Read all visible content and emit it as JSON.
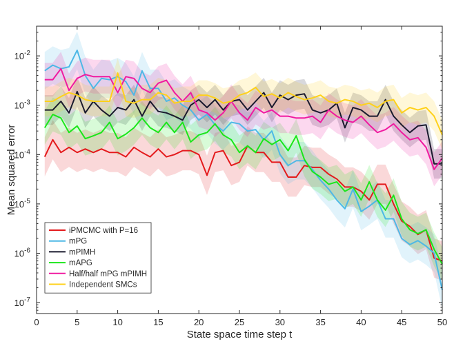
{
  "chart_data": {
    "type": "line",
    "xlabel": "State space time step t",
    "ylabel": "Mean squared error",
    "xlim": [
      0,
      50
    ],
    "ylim": [
      6e-08,
      0.04
    ],
    "yscale": "log",
    "x_ticks": [
      0,
      5,
      10,
      15,
      20,
      25,
      30,
      35,
      40,
      45,
      50
    ],
    "y_ticks": [
      {
        "value": 1e-07,
        "base": "10",
        "exp": "-7"
      },
      {
        "value": 1e-06,
        "base": "10",
        "exp": "-6"
      },
      {
        "value": 1e-05,
        "base": "10",
        "exp": "-5"
      },
      {
        "value": 0.0001,
        "base": "10",
        "exp": "-4"
      },
      {
        "value": 0.001,
        "base": "10",
        "exp": "-3"
      },
      {
        "value": 0.01,
        "base": "10",
        "exp": "-2"
      }
    ],
    "legend_position": "bottom-left",
    "x": [
      1,
      2,
      3,
      4,
      5,
      6,
      7,
      8,
      9,
      10,
      11,
      12,
      13,
      14,
      15,
      16,
      17,
      18,
      19,
      20,
      21,
      22,
      23,
      24,
      25,
      26,
      27,
      28,
      29,
      30,
      31,
      32,
      33,
      34,
      35,
      36,
      37,
      38,
      39,
      40,
      41,
      42,
      43,
      44,
      45,
      46,
      47,
      48,
      49,
      50
    ],
    "series": [
      {
        "name": "iPMCMC with P=16",
        "color": "#e41a1c",
        "band_factor": 2.5,
        "values": [
          9e-05,
          0.0002,
          0.00011,
          0.00014,
          0.00011,
          0.00013,
          0.00011,
          0.00013,
          0.00011,
          0.00011,
          9e-05,
          0.00014,
          0.00011,
          9e-05,
          0.00013,
          9e-05,
          0.0001,
          0.00012,
          0.00012,
          0.0001,
          3.8e-05,
          0.00011,
          0.00012,
          6e-05,
          7e-05,
          0.00015,
          0.00011,
          0.00011,
          7e-05,
          7e-05,
          3.5e-05,
          3.5e-05,
          6e-05,
          5.5e-05,
          5.5e-05,
          4e-05,
          3.2e-05,
          2.2e-05,
          2.2e-05,
          1.8e-05,
          1.2e-05,
          2.5e-05,
          2.5e-05,
          1e-05,
          4.5e-06,
          3.5e-06,
          2.4e-06,
          3e-06,
          8e-07,
          7e-07
        ]
      },
      {
        "name": "mPG",
        "color": "#4db8e6",
        "band_factor": 2.4,
        "values": [
          0.005,
          0.0065,
          0.0055,
          0.006,
          0.013,
          0.004,
          0.0022,
          0.0035,
          0.0033,
          0.0038,
          0.003,
          0.0016,
          0.005,
          0.0022,
          0.0022,
          0.0012,
          0.0014,
          0.001,
          0.0008,
          0.0005,
          0.00065,
          0.0004,
          0.0003,
          0.00045,
          0.00042,
          0.0003,
          0.00032,
          0.0002,
          0.0003,
          0.0001,
          6e-05,
          7.5e-05,
          7.5e-05,
          5e-05,
          3e-05,
          2e-05,
          1.2e-05,
          8e-06,
          2e-05,
          7e-06,
          9e-06,
          1.2e-05,
          5e-06,
          5e-06,
          2e-06,
          1.5e-06,
          1.8e-06,
          1.4e-06,
          1e-06,
          1.8e-07
        ]
      },
      {
        "name": "mPIMH",
        "color": "#1a1a2e",
        "band_factor": 2.0,
        "values": [
          0.0008,
          0.0008,
          0.0012,
          0.0007,
          0.0019,
          0.0007,
          0.0012,
          0.0008,
          0.0006,
          0.0009,
          0.0008,
          0.0013,
          0.0006,
          0.0012,
          0.00075,
          0.0007,
          0.0006,
          0.0005,
          0.001,
          0.0013,
          0.0009,
          0.0013,
          0.0008,
          0.0012,
          0.0013,
          0.0008,
          0.0012,
          0.0018,
          0.0009,
          0.0016,
          0.0013,
          0.0016,
          0.0017,
          0.0008,
          0.0007,
          0.0008,
          0.0011,
          0.00035,
          0.0009,
          0.0008,
          0.0006,
          0.0006,
          0.0013,
          0.0006,
          0.0004,
          0.00028,
          0.00038,
          0.0004,
          6.5e-05,
          6.5e-05
        ]
      },
      {
        "name": "mAPG",
        "color": "#1ae61a",
        "band_factor": 2.2,
        "values": [
          0.00035,
          0.00065,
          0.00055,
          0.00028,
          0.00038,
          0.00021,
          0.00024,
          0.00028,
          0.00045,
          0.00021,
          0.00026,
          0.00035,
          0.00055,
          0.00035,
          0.00028,
          0.00045,
          0.00028,
          0.00045,
          0.00018,
          0.00025,
          0.00028,
          0.00042,
          0.00025,
          0.0002,
          0.00011,
          0.00015,
          0.00011,
          0.00021,
          0.00016,
          0.0002,
          0.00012,
          0.00024,
          8e-05,
          4.5e-05,
          3.5e-05,
          2.5e-05,
          2.8e-05,
          1.8e-05,
          2.2e-05,
          1.2e-05,
          2.8e-05,
          1.2e-05,
          7.5e-06,
          1.5e-05,
          5e-06,
          3e-06,
          2.5e-06,
          3e-06,
          1.2e-06,
          6e-07
        ]
      },
      {
        "name": "Half/half mPG mPIMH",
        "color": "#f01aa0",
        "band_factor": 2.2,
        "values": [
          0.0033,
          0.0033,
          0.0055,
          0.002,
          0.0035,
          0.0042,
          0.0038,
          0.0038,
          0.0038,
          0.0018,
          0.0038,
          0.0035,
          0.0022,
          0.0018,
          0.0028,
          0.0032,
          0.0018,
          0.0012,
          0.0018,
          0.0008,
          0.0007,
          0.0005,
          0.0007,
          0.0012,
          0.0007,
          0.0005,
          0.0009,
          0.0007,
          0.0008,
          0.0006,
          0.0006,
          0.00055,
          0.00055,
          0.0006,
          0.00045,
          0.0008,
          0.0006,
          0.0005,
          0.00045,
          0.0006,
          0.0004,
          0.00028,
          0.00032,
          0.00042,
          0.00028,
          0.0002,
          0.00022,
          0.00014,
          5e-05,
          8.5e-05
        ]
      },
      {
        "name": "Independent SMCs",
        "color": "#ffd11a",
        "band_factor": 2.0,
        "values": [
          0.0012,
          0.0012,
          0.0015,
          0.0018,
          0.0016,
          0.0013,
          0.0012,
          0.0012,
          0.0012,
          0.0045,
          0.0012,
          0.0011,
          0.0013,
          0.0013,
          0.0018,
          0.0016,
          0.0011,
          0.0012,
          0.0012,
          0.0016,
          0.0016,
          0.0014,
          0.0011,
          0.0012,
          0.0016,
          0.0018,
          0.0023,
          0.0015,
          0.0017,
          0.0014,
          0.0018,
          0.0015,
          0.0013,
          0.0014,
          0.0016,
          0.0012,
          0.0011,
          0.0013,
          0.0012,
          0.001,
          0.0011,
          0.0009,
          0.0012,
          0.0013,
          0.0007,
          0.0009,
          0.0008,
          0.0009,
          0.0006,
          0.00025
        ]
      }
    ]
  }
}
